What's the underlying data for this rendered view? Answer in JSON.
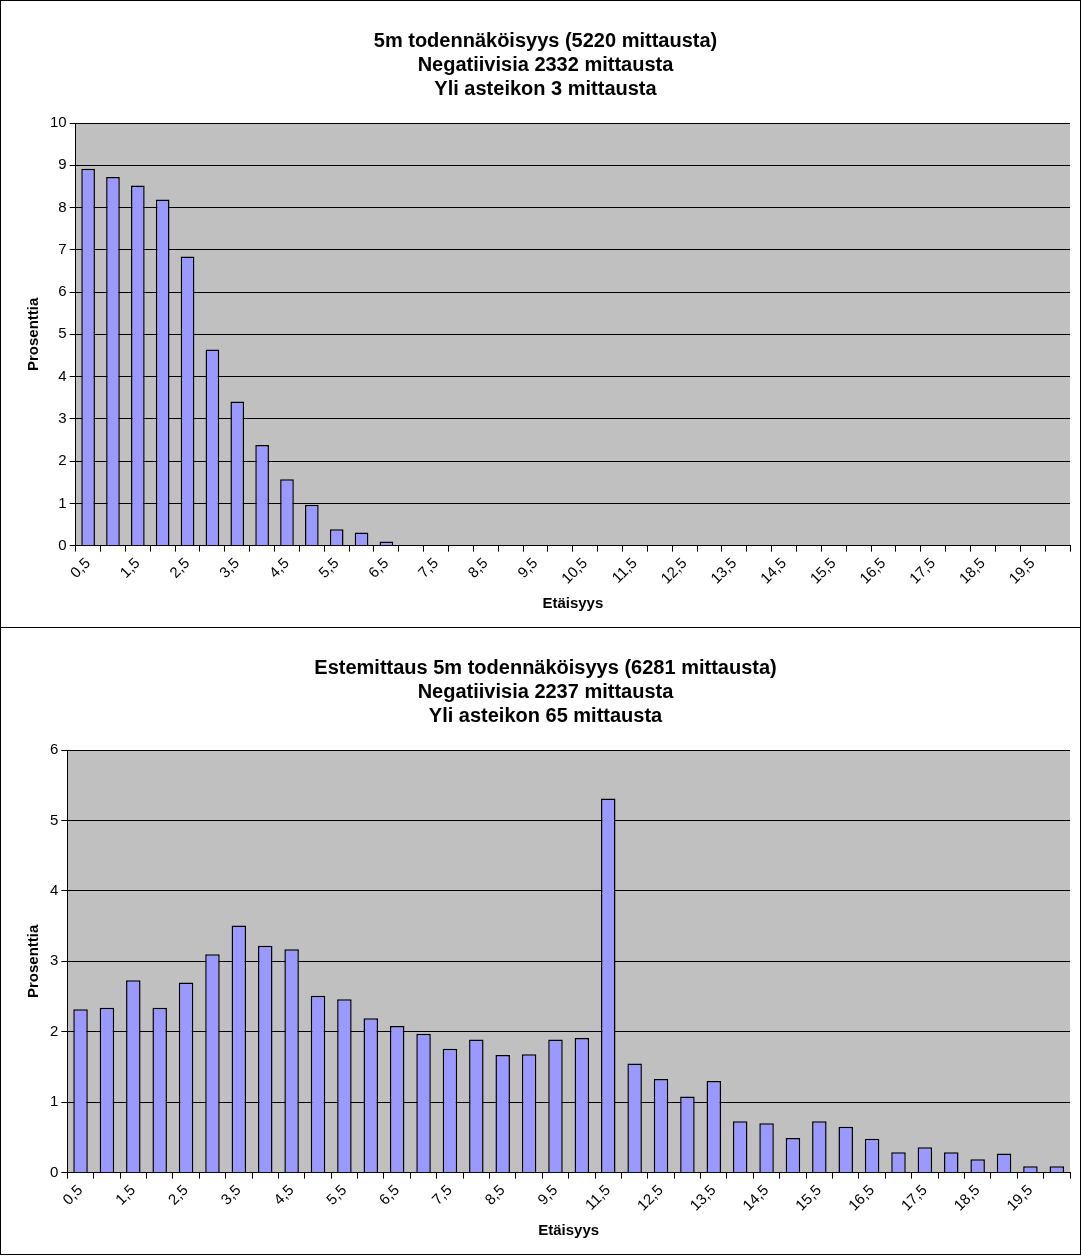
{
  "chart_data": [
    {
      "type": "bar",
      "title": "5m todennäköisyys (5220 mittausta)\nNegatiivisia 2332 mittausta\nYli asteikon 3 mittausta",
      "xlabel": "Etäisyys",
      "ylabel": "Prosenttia",
      "categories": [
        "0,5",
        null,
        "1,5",
        null,
        "2,5",
        null,
        "3,5",
        null,
        "4,5",
        null,
        "5,5",
        null,
        "6,5",
        null,
        "7,5",
        null,
        "8,5",
        null,
        "9,5",
        null,
        "10,5",
        null,
        "11,5",
        null,
        "12,5",
        null,
        "13,5",
        null,
        "14,5",
        null,
        "15,5",
        null,
        "16,5",
        null,
        "17,5",
        null,
        "18,5",
        null,
        "19,5",
        null
      ],
      "values": [
        8.92,
        8.72,
        8.52,
        8.19,
        6.84,
        4.64,
        3.41,
        2.38,
        1.57,
        0.97,
        0.39,
        0.31,
        0.1,
        0,
        0,
        0,
        0,
        0,
        0,
        0,
        0,
        0,
        0,
        0,
        0,
        0,
        0,
        0,
        0,
        0,
        0,
        0,
        0,
        0,
        0,
        0,
        0,
        0,
        0,
        0
      ],
      "color": "#9999ff",
      "ylim": [
        0,
        10
      ],
      "yticks": [
        0,
        1,
        2,
        3,
        4,
        5,
        6,
        7,
        8,
        9,
        10
      ],
      "grid": "y",
      "legend": false
    },
    {
      "type": "bar",
      "title": "Estemittaus 5m todennäköisyys (6281 mittausta)\nNegatiivisia 2237 mittausta\nYli asteikon 65 mittausta",
      "xlabel": "Etäisyys",
      "ylabel": "Prosenttia",
      "categories": [
        "0,5",
        null,
        "1,5",
        null,
        "2,5",
        null,
        "3,5",
        null,
        "4,5",
        null,
        "5,5",
        null,
        "6,5",
        null,
        "7,5",
        null,
        "8,5",
        null,
        "9,5",
        null,
        "11,5",
        null,
        "12,5",
        null,
        "13,5",
        null,
        "14,5",
        null,
        "15,5",
        null,
        "16,5",
        null,
        "17,5",
        null,
        "18,5",
        null,
        "19,5",
        null
      ],
      "values": [
        2.32,
        2.34,
        2.73,
        2.34,
        2.7,
        3.1,
        3.51,
        3.22,
        3.17,
        2.51,
        2.46,
        2.19,
        2.08,
        1.97,
        1.76,
        1.89,
        1.67,
        1.68,
        1.89,
        1.91,
        5.31,
        1.55,
        1.33,
        1.08,
        1.3,
        0.73,
        0.7,
        0.49,
        0.73,
        0.65,
        0.48,
        0.29,
        0.36,
        0.29,
        0.19,
        0.27,
        0.09,
        0.09
      ],
      "color": "#9999ff",
      "ylim": [
        0,
        6
      ],
      "yticks": [
        0,
        1,
        2,
        3,
        4,
        5,
        6
      ],
      "grid": "y",
      "legend": false
    }
  ]
}
